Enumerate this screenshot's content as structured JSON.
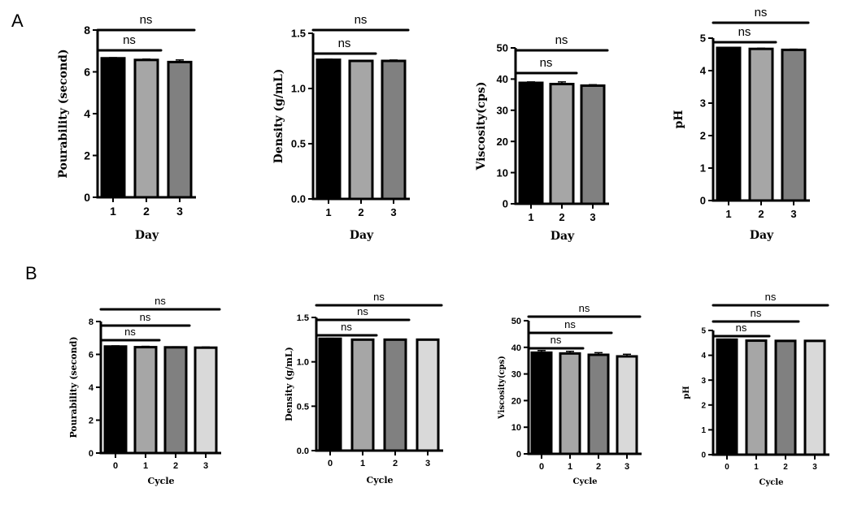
{
  "panel_labels": [
    "A",
    "B"
  ],
  "chart_data": [
    {
      "panel": "A",
      "type": "bar",
      "categories": [
        "1",
        "2",
        "3"
      ],
      "values": [
        6.65,
        6.57,
        6.47
      ],
      "errors": [
        0.03,
        0.04,
        0.1
      ],
      "colors": [
        "#000000",
        "#a6a6a6",
        "#808080"
      ],
      "ylim": [
        0,
        8
      ],
      "yticks": [
        "0",
        "2",
        "4",
        "6",
        "8"
      ],
      "ylabel": "Pourability (second)",
      "xlabel": "Day",
      "significance": [
        {
          "label": "ns",
          "from": 0,
          "to": 1
        },
        {
          "label": "ns",
          "from": 0,
          "to": 2
        }
      ]
    },
    {
      "panel": "A",
      "type": "bar",
      "categories": [
        "1",
        "2",
        "3"
      ],
      "values": [
        1.26,
        1.25,
        1.25
      ],
      "errors": [
        0.005,
        0.005,
        0.008
      ],
      "colors": [
        "#000000",
        "#a6a6a6",
        "#808080"
      ],
      "ylim": [
        0,
        1.5
      ],
      "yticks": [
        "0.0",
        "0.5",
        "1.0",
        "1.5"
      ],
      "ylabel": "Density (g/mL)",
      "xlabel": "Day",
      "significance": [
        {
          "label": "ns",
          "from": 0,
          "to": 1
        },
        {
          "label": "ns",
          "from": 0,
          "to": 2
        }
      ]
    },
    {
      "panel": "A",
      "type": "bar",
      "categories": [
        "1",
        "2",
        "3"
      ],
      "values": [
        38.8,
        38.4,
        37.9
      ],
      "errors": [
        0.3,
        0.7,
        0.3
      ],
      "colors": [
        "#000000",
        "#a6a6a6",
        "#808080"
      ],
      "ylim": [
        0,
        50
      ],
      "yticks": [
        "0",
        "10",
        "20",
        "30",
        "40",
        "50"
      ],
      "ylabel": "Viscosity(cps)",
      "xlabel": "Day",
      "significance": [
        {
          "label": "ns",
          "from": 0,
          "to": 1
        },
        {
          "label": "ns",
          "from": 0,
          "to": 2
        }
      ]
    },
    {
      "panel": "A",
      "type": "bar",
      "categories": [
        "1",
        "2",
        "3"
      ],
      "values": [
        4.7,
        4.67,
        4.64
      ],
      "errors": [
        0.01,
        0.02,
        0.02
      ],
      "colors": [
        "#000000",
        "#a6a6a6",
        "#808080"
      ],
      "ylim": [
        0,
        5
      ],
      "yticks": [
        "0",
        "1",
        "2",
        "3",
        "4",
        "5"
      ],
      "ylabel": "pH",
      "xlabel": "Day",
      "significance": [
        {
          "label": "ns",
          "from": 0,
          "to": 1
        },
        {
          "label": "ns",
          "from": 0,
          "to": 2
        }
      ]
    },
    {
      "panel": "B",
      "type": "bar",
      "categories": [
        "0",
        "1",
        "2",
        "3"
      ],
      "values": [
        6.48,
        6.44,
        6.43,
        6.41
      ],
      "errors": [
        0.04,
        0.05,
        0.03,
        0.04
      ],
      "colors": [
        "#000000",
        "#a6a6a6",
        "#808080",
        "#d9d9d9"
      ],
      "ylim": [
        0,
        8
      ],
      "yticks": [
        "0",
        "2",
        "4",
        "6",
        "8"
      ],
      "ylabel": "Pourability (second)",
      "xlabel": "Cycle",
      "significance": [
        {
          "label": "ns",
          "from": 0,
          "to": 1
        },
        {
          "label": "ns",
          "from": 0,
          "to": 2
        },
        {
          "label": "ns",
          "from": 0,
          "to": 3
        }
      ]
    },
    {
      "panel": "B",
      "type": "bar",
      "categories": [
        "0",
        "1",
        "2",
        "3"
      ],
      "values": [
        1.26,
        1.25,
        1.25,
        1.25
      ],
      "errors": [
        0.005,
        0.005,
        0.005,
        0.005
      ],
      "colors": [
        "#000000",
        "#a6a6a6",
        "#808080",
        "#d9d9d9"
      ],
      "ylim": [
        0,
        1.5
      ],
      "yticks": [
        "0.0",
        "0.5",
        "1.0",
        "1.5"
      ],
      "ylabel": "Density (g/mL)",
      "xlabel": "Cycle",
      "significance": [
        {
          "label": "ns",
          "from": 0,
          "to": 1
        },
        {
          "label": "ns",
          "from": 0,
          "to": 2
        },
        {
          "label": "ns",
          "from": 0,
          "to": 3
        }
      ]
    },
    {
      "panel": "B",
      "type": "bar",
      "categories": [
        "0",
        "1",
        "2",
        "3"
      ],
      "values": [
        38.0,
        37.7,
        37.2,
        36.6
      ],
      "errors": [
        0.8,
        0.8,
        0.8,
        0.8
      ],
      "colors": [
        "#000000",
        "#a6a6a6",
        "#808080",
        "#d9d9d9"
      ],
      "ylim": [
        0,
        50
      ],
      "yticks": [
        "0",
        "10",
        "20",
        "30",
        "40",
        "50"
      ],
      "ylabel": "Viscosity(cps)",
      "xlabel": "Cycle",
      "significance": [
        {
          "label": "ns",
          "from": 0,
          "to": 1
        },
        {
          "label": "ns",
          "from": 0,
          "to": 2
        },
        {
          "label": "ns",
          "from": 0,
          "to": 3
        }
      ]
    },
    {
      "panel": "B",
      "type": "bar",
      "categories": [
        "0",
        "1",
        "2",
        "3"
      ],
      "values": [
        4.63,
        4.59,
        4.58,
        4.58
      ],
      "errors": [
        0.02,
        0.02,
        0.02,
        0.02
      ],
      "colors": [
        "#000000",
        "#a6a6a6",
        "#808080",
        "#d9d9d9"
      ],
      "ylim": [
        0,
        5
      ],
      "yticks": [
        "0",
        "1",
        "2",
        "3",
        "4",
        "5"
      ],
      "ylabel": "pH",
      "xlabel": "Cycle",
      "significance": [
        {
          "label": "ns",
          "from": 0,
          "to": 1
        },
        {
          "label": "ns",
          "from": 0,
          "to": 2
        },
        {
          "label": "ns",
          "from": 0,
          "to": 3
        }
      ]
    }
  ]
}
